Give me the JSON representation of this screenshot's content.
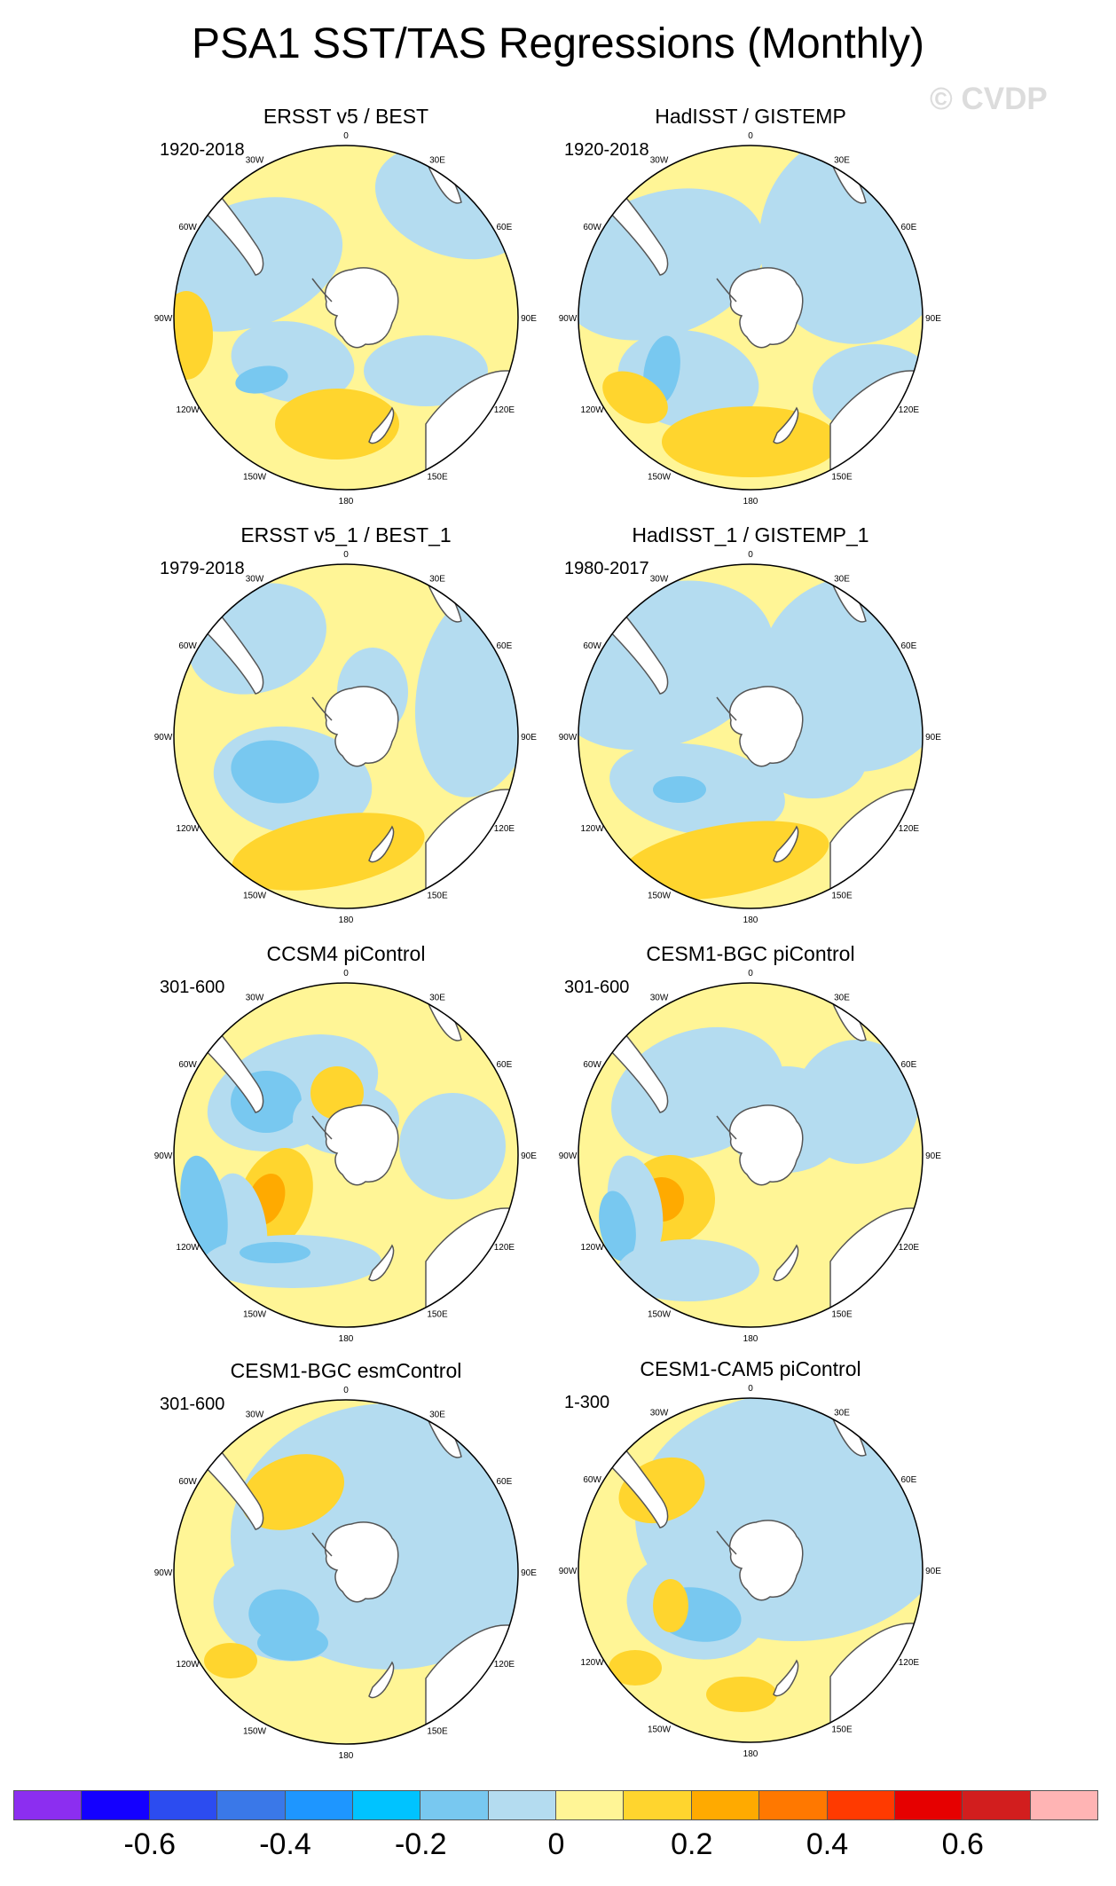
{
  "title": "PSA1 SST/TAS Regressions (Monthly)",
  "copyright": "© CVDP",
  "panels": [
    {
      "title": "ERSST v5 / BEST",
      "period": "1920-2018"
    },
    {
      "title": "HadISST / GISTEMP",
      "period": "1920-2018"
    },
    {
      "title": "ERSST v5_1 / BEST_1",
      "period": "1979-2018"
    },
    {
      "title": "HadISST_1 / GISTEMP_1",
      "period": "1980-2017"
    },
    {
      "title": "CCSM4 piControl",
      "period": "301-600"
    },
    {
      "title": "CESM1-BGC piControl",
      "period": "301-600"
    },
    {
      "title": "CESM1-BGC esmControl",
      "period": "301-600"
    },
    {
      "title": "CESM1-CAM5 piControl",
      "period": "1-300"
    }
  ],
  "longitude_labels": [
    "0",
    "30E",
    "60E",
    "90E",
    "120E",
    "150E",
    "180",
    "150W",
    "120W",
    "90W",
    "60W",
    "30W"
  ],
  "colorbar": {
    "colors": [
      "#8c2ef0",
      "#1400ff",
      "#2c4cf0",
      "#3a78e8",
      "#1e96ff",
      "#00c3ff",
      "#78c8f0",
      "#b4dcf0",
      "#fff596",
      "#ffd52e",
      "#ffaa00",
      "#ff7800",
      "#ff3a00",
      "#e60000",
      "#d21e1e",
      "#ffb4b4"
    ],
    "tick_labels": [
      "-0.6",
      "-0.4",
      "-0.2",
      "0",
      "0.2",
      "0.4",
      "0.6"
    ]
  },
  "palette": {
    "land": "#ffffff",
    "coast": "#555555"
  }
}
